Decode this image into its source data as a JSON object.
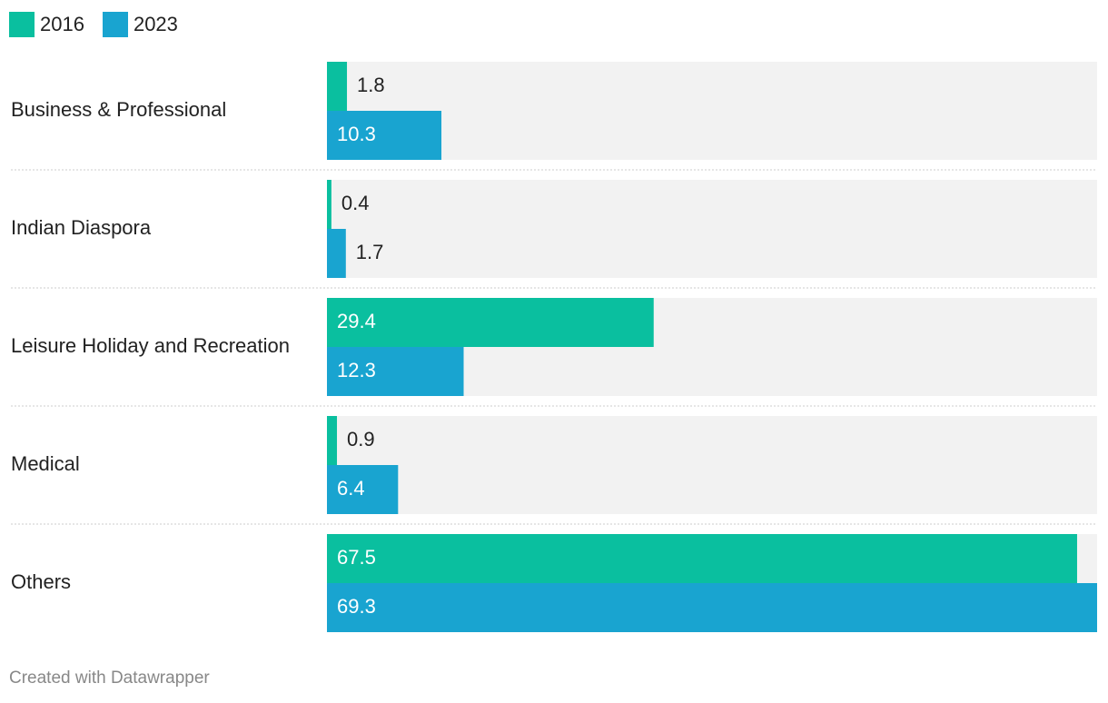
{
  "chart_data": {
    "type": "bar",
    "orientation": "horizontal",
    "categories": [
      "Business & Professional",
      "Indian Diaspora",
      "Leisure Holiday and Recreation",
      "Medical",
      "Others"
    ],
    "series": [
      {
        "name": "2016",
        "color": "#0abf9f",
        "values": [
          1.8,
          0.4,
          29.4,
          0.9,
          67.5
        ]
      },
      {
        "name": "2023",
        "color": "#19a4d0",
        "values": [
          10.3,
          1.7,
          12.3,
          6.4,
          69.3
        ]
      }
    ],
    "value_labels": {
      "2016": [
        "1.8",
        "0.4",
        "29.4",
        "0.9",
        "67.5"
      ],
      "2023": [
        "10.3",
        "1.7",
        "12.3",
        "6.4",
        "69.3"
      ]
    },
    "xlim": [
      0,
      69.3
    ],
    "legend_position": "top-left",
    "grid": false,
    "title": "",
    "xlabel": "",
    "ylabel": ""
  },
  "colors": {
    "track": "#f2f2f2",
    "separator": "#cccccc",
    "label_dark": "#222222",
    "label_light": "#ffffff"
  },
  "footer": {
    "credit": "Created with Datawrapper"
  }
}
